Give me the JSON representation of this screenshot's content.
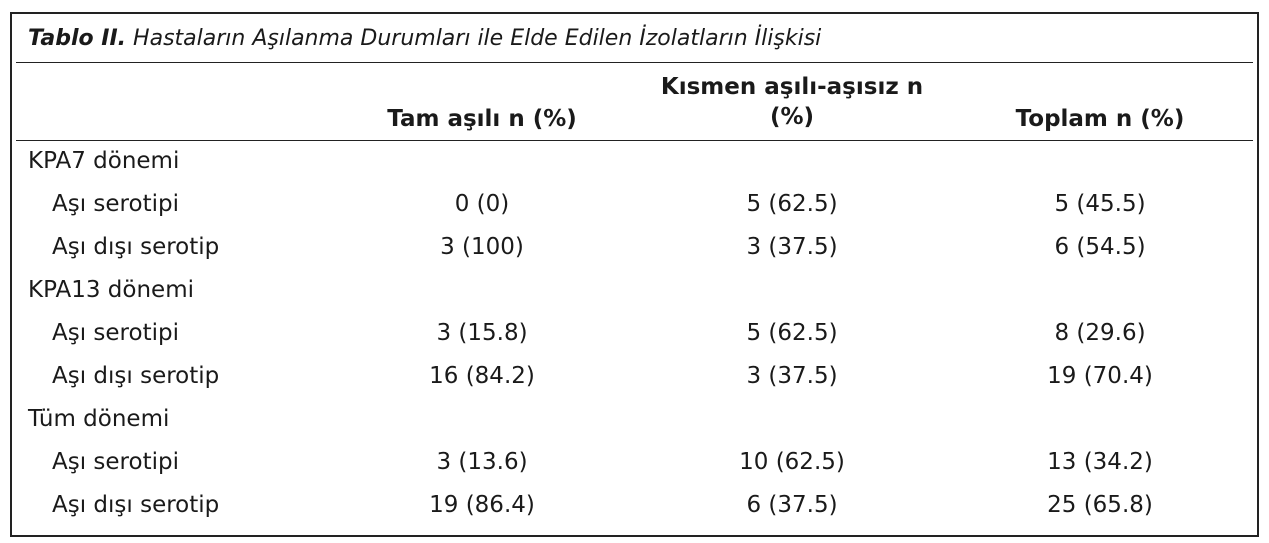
{
  "title": {
    "label": "Tablo II.",
    "text": "Hastaların Aşılanma Durumları ile Elde Edilen İzolatların İlişkisi"
  },
  "header": {
    "columns": [
      "Tam aşılı n (%)",
      "Kısmen aşılı-aşısız n (%)",
      "Toplam n (%)"
    ]
  },
  "groups": [
    {
      "label": "KPA7 dönemi",
      "rows": [
        {
          "label": "Aşı serotipi",
          "cells": [
            "0 (0)",
            "5 (62.5)",
            "5 (45.5)"
          ]
        },
        {
          "label": "Aşı dışı serotip",
          "cells": [
            "3 (100)",
            "3 (37.5)",
            "6 (54.5)"
          ]
        }
      ]
    },
    {
      "label": "KPA13 dönemi",
      "rows": [
        {
          "label": "Aşı serotipi",
          "cells": [
            "3 (15.8)",
            "5 (62.5)",
            "8 (29.6)"
          ]
        },
        {
          "label": "Aşı dışı serotip",
          "cells": [
            "16 (84.2)",
            "3 (37.5)",
            "19 (70.4)"
          ]
        }
      ]
    },
    {
      "label": "Tüm dönemi",
      "rows": [
        {
          "label": "Aşı serotipi",
          "cells": [
            "3 (13.6)",
            "10 (62.5)",
            "13 (34.2)"
          ]
        },
        {
          "label": "Aşı dışı serotip",
          "cells": [
            "19 (86.4)",
            "6 (37.5)",
            "25 (65.8)"
          ]
        }
      ]
    }
  ]
}
